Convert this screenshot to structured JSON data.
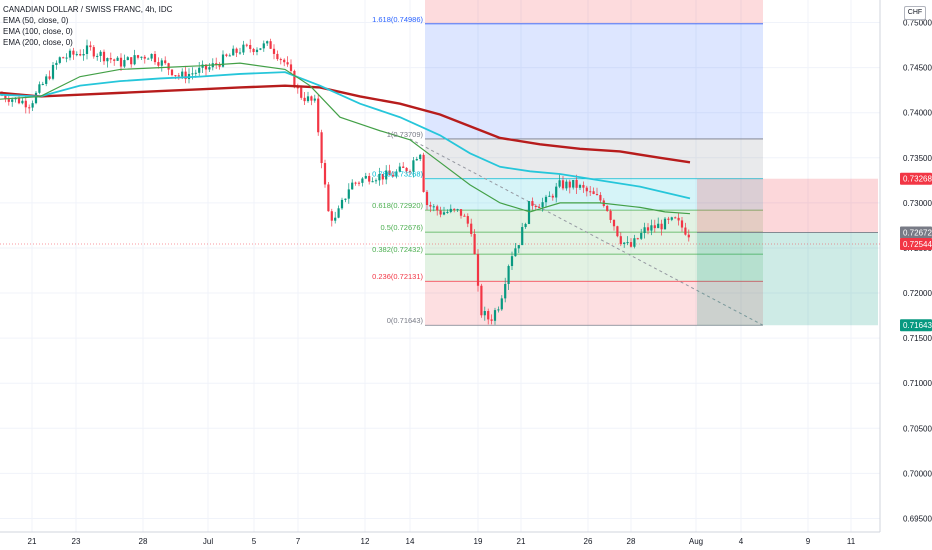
{
  "legend": {
    "title": "CANADIAN DOLLAR / SWISS FRANC, 4h, IDC",
    "ema50": "EMA (50, close, 0)",
    "ema100": "EMA (100, close, 0)",
    "ema200": "EMA (200, close, 0)"
  },
  "currency_badge": "CHF",
  "chart_data": {
    "type": "candlestick",
    "symbol": "CADCHF",
    "timeframe": "4h",
    "ylim": [
      0.6935,
      0.7525
    ],
    "price_ticks": [
      "0.75000",
      "0.74500",
      "0.74000",
      "0.73500",
      "0.73000",
      "0.72500",
      "0.72000",
      "0.71500",
      "0.71000",
      "0.70500",
      "0.70000",
      "0.69500"
    ],
    "date_ticks": [
      "21",
      "23",
      "28",
      "Jul",
      "5",
      "7",
      "12",
      "14",
      "19",
      "21",
      "26",
      "28",
      "Aug",
      "4",
      "9",
      "11"
    ],
    "price_badges": [
      {
        "value": "0.73268",
        "color": "#f23645"
      },
      {
        "value": "0.72672",
        "color": "#787b86"
      },
      {
        "value": "0.72544",
        "color": "#f23645"
      },
      {
        "value": "0.71643",
        "color": "#089981"
      }
    ],
    "fib_levels": [
      {
        "label": "1.618(0.74986)",
        "price": 0.74986,
        "color": "#2962ff"
      },
      {
        "label": "1(0.73709)",
        "price": 0.73709,
        "color": "#787b86"
      },
      {
        "label": "0.786(0.73268)",
        "price": 0.73268,
        "color": "#00bcd4"
      },
      {
        "label": "0.618(0.72920)",
        "price": 0.7292,
        "color": "#4caf50"
      },
      {
        "label": "0.5(0.72676)",
        "price": 0.72676,
        "color": "#4caf50"
      },
      {
        "label": "0.382(0.72432)",
        "price": 0.72432,
        "color": "#4caf50"
      },
      {
        "label": "0.236(0.72131)",
        "price": 0.72131,
        "color": "#f23645"
      },
      {
        "label": "0(0.71643)",
        "price": 0.71643,
        "color": "#787b86"
      }
    ],
    "ema50": [
      [
        0,
        0.7415
      ],
      [
        40,
        0.7418
      ],
      [
        80,
        0.744
      ],
      [
        120,
        0.7448
      ],
      [
        160,
        0.745
      ],
      [
        200,
        0.7452
      ],
      [
        240,
        0.7455
      ],
      [
        285,
        0.7448
      ],
      [
        310,
        0.743
      ],
      [
        340,
        0.7395
      ],
      [
        380,
        0.738
      ],
      [
        410,
        0.737
      ],
      [
        440,
        0.7345
      ],
      [
        470,
        0.732
      ],
      [
        500,
        0.73
      ],
      [
        530,
        0.729
      ],
      [
        560,
        0.73
      ],
      [
        600,
        0.73
      ],
      [
        640,
        0.7295
      ],
      [
        665,
        0.729
      ],
      [
        690,
        0.7288
      ]
    ],
    "ema100": [
      [
        0,
        0.742
      ],
      [
        40,
        0.7418
      ],
      [
        80,
        0.743
      ],
      [
        120,
        0.7435
      ],
      [
        160,
        0.7438
      ],
      [
        200,
        0.744
      ],
      [
        240,
        0.7443
      ],
      [
        285,
        0.7445
      ],
      [
        320,
        0.743
      ],
      [
        360,
        0.741
      ],
      [
        400,
        0.7395
      ],
      [
        440,
        0.7375
      ],
      [
        470,
        0.7355
      ],
      [
        500,
        0.734
      ],
      [
        530,
        0.7335
      ],
      [
        560,
        0.7332
      ],
      [
        600,
        0.7325
      ],
      [
        640,
        0.7318
      ],
      [
        690,
        0.7305
      ]
    ],
    "ema200": [
      [
        0,
        0.7422
      ],
      [
        40,
        0.7418
      ],
      [
        80,
        0.742
      ],
      [
        120,
        0.7422
      ],
      [
        160,
        0.7424
      ],
      [
        200,
        0.7426
      ],
      [
        240,
        0.7428
      ],
      [
        285,
        0.743
      ],
      [
        320,
        0.7428
      ],
      [
        360,
        0.7418
      ],
      [
        400,
        0.741
      ],
      [
        440,
        0.7398
      ],
      [
        470,
        0.7385
      ],
      [
        500,
        0.7372
      ],
      [
        540,
        0.7365
      ],
      [
        580,
        0.736
      ],
      [
        620,
        0.7357
      ],
      [
        660,
        0.735
      ],
      [
        690,
        0.7345
      ]
    ]
  }
}
